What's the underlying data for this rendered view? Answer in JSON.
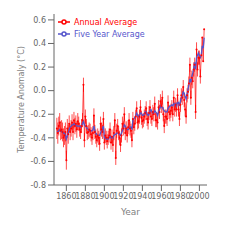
{
  "chart_data": {
    "type": "line",
    "title": "",
    "xlabel": "Year",
    "ylabel": "Temperature Anomaly (°C)",
    "xlim": [
      1847,
      2008
    ],
    "ylim": [
      -0.8,
      0.65
    ],
    "xticks": [
      1860,
      1880,
      1900,
      1920,
      1940,
      1960,
      1980,
      2000
    ],
    "yticks": [
      -0.8,
      -0.6,
      -0.4,
      -0.2,
      {
        "value": 0,
        "label": "0.0"
      },
      0.2,
      0.4,
      0.6
    ],
    "grid": false,
    "legend": "upper left",
    "x": [
      1850,
      1851,
      1852,
      1853,
      1854,
      1855,
      1856,
      1857,
      1858,
      1859,
      1860,
      1861,
      1862,
      1863,
      1864,
      1865,
      1866,
      1867,
      1868,
      1869,
      1870,
      1871,
      1872,
      1873,
      1874,
      1875,
      1876,
      1877,
      1878,
      1879,
      1880,
      1881,
      1882,
      1883,
      1884,
      1885,
      1886,
      1887,
      1888,
      1889,
      1890,
      1891,
      1892,
      1893,
      1894,
      1895,
      1896,
      1897,
      1898,
      1899,
      1900,
      1901,
      1902,
      1903,
      1904,
      1905,
      1906,
      1907,
      1908,
      1909,
      1910,
      1911,
      1912,
      1913,
      1914,
      1915,
      1916,
      1917,
      1918,
      1919,
      1920,
      1921,
      1922,
      1923,
      1924,
      1925,
      1926,
      1927,
      1928,
      1929,
      1930,
      1931,
      1932,
      1933,
      1934,
      1935,
      1936,
      1937,
      1938,
      1939,
      1940,
      1941,
      1942,
      1943,
      1944,
      1945,
      1946,
      1947,
      1948,
      1949,
      1950,
      1951,
      1952,
      1953,
      1954,
      1955,
      1956,
      1957,
      1958,
      1959,
      1960,
      1961,
      1962,
      1963,
      1964,
      1965,
      1966,
      1967,
      1968,
      1969,
      1970,
      1971,
      1972,
      1973,
      1974,
      1975,
      1976,
      1977,
      1978,
      1979,
      1980,
      1981,
      1982,
      1983,
      1984,
      1985,
      1986,
      1987,
      1988,
      1989,
      1990,
      1991,
      1992,
      1993,
      1994,
      1995,
      1996,
      1997,
      1998,
      1999,
      2000,
      2001,
      2002,
      2003,
      2004,
      2005
    ],
    "series": [
      {
        "name": "Annual Average",
        "color": "#FF0000",
        "marker": "o",
        "line_style": "solid",
        "values": [
          -0.32,
          -0.36,
          -0.3,
          -0.27,
          -0.34,
          -0.33,
          -0.35,
          -0.4,
          -0.38,
          -0.35,
          -0.59,
          -0.32,
          -0.37,
          -0.28,
          -0.35,
          -0.32,
          -0.27,
          -0.35,
          -0.25,
          -0.3,
          -0.28,
          -0.33,
          -0.26,
          -0.28,
          -0.33,
          -0.35,
          -0.3,
          -0.25,
          0.05,
          -0.42,
          -0.22,
          -0.3,
          -0.36,
          -0.35,
          -0.33,
          -0.34,
          -0.37,
          -0.4,
          -0.36,
          -0.21,
          -0.35,
          -0.39,
          -0.42,
          -0.38,
          -0.4,
          -0.45,
          -0.28,
          -0.33,
          -0.35,
          -0.24,
          -0.44,
          -0.38,
          -0.4,
          -0.43,
          -0.4,
          -0.38,
          -0.33,
          -0.44,
          -0.39,
          -0.46,
          -0.36,
          -0.25,
          -0.57,
          -0.34,
          -0.3,
          -0.36,
          -0.4,
          -0.46,
          -0.38,
          -0.28,
          -0.32,
          -0.2,
          -0.36,
          -0.32,
          -0.38,
          -0.31,
          -0.25,
          -0.32,
          -0.34,
          -0.42,
          -0.24,
          -0.31,
          -0.28,
          -0.22,
          -0.15,
          -0.27,
          -0.26,
          -0.22,
          -0.14,
          -0.23,
          -0.26,
          -0.25,
          -0.22,
          -0.19,
          -0.15,
          -0.24,
          -0.27,
          -0.19,
          -0.14,
          -0.22,
          -0.24,
          -0.18,
          -0.2,
          -0.11,
          -0.25,
          -0.25,
          -0.27,
          -0.14,
          -0.18,
          -0.09,
          -0.13,
          -0.06,
          -0.2,
          -0.3,
          -0.22,
          -0.22,
          -0.24,
          -0.1,
          -0.18,
          -0.2,
          -0.17,
          -0.14,
          -0.2,
          -0.06,
          -0.16,
          -0.12,
          -0.16,
          -0.04,
          -0.16,
          -0.24,
          -0.12,
          -0.04,
          -0.06,
          0.03,
          -0.08,
          -0.16,
          -0.22,
          -0.04,
          -0.01,
          0.06,
          0.22,
          -0.06,
          0.11,
          0.08,
          0.18,
          0.22,
          -0.18,
          0.35,
          0.18,
          0.28,
          0.28,
          0.12,
          0.3,
          0.45,
          0.25,
          0.52
        ],
        "error": [
          0.09,
          0.09,
          0.08,
          0.08,
          0.08,
          0.08,
          0.08,
          0.08,
          0.08,
          0.08,
          0.08,
          0.08,
          0.08,
          0.07,
          0.07,
          0.07,
          0.07,
          0.07,
          0.07,
          0.07,
          0.07,
          0.07,
          0.07,
          0.06,
          0.06,
          0.06,
          0.06,
          0.06,
          0.06,
          0.06,
          0.06,
          0.06,
          0.06,
          0.06,
          0.06,
          0.06,
          0.06,
          0.06,
          0.06,
          0.06,
          0.06,
          0.06,
          0.06,
          0.06,
          0.06,
          0.06,
          0.06,
          0.06,
          0.06,
          0.06,
          0.06,
          0.06,
          0.06,
          0.06,
          0.06,
          0.06,
          0.06,
          0.06,
          0.06,
          0.06,
          0.06,
          0.06,
          0.06,
          0.06,
          0.06,
          0.06,
          0.06,
          0.06,
          0.06,
          0.06,
          0.06,
          0.06,
          0.06,
          0.06,
          0.06,
          0.06,
          0.06,
          0.06,
          0.06,
          0.06,
          0.06,
          0.06,
          0.06,
          0.06,
          0.06,
          0.06,
          0.06,
          0.06,
          0.06,
          0.06,
          0.06,
          0.06,
          0.06,
          0.06,
          0.06,
          0.06,
          0.06,
          0.06,
          0.06,
          0.06,
          0.06,
          0.06,
          0.06,
          0.06,
          0.06,
          0.06,
          0.06,
          0.06,
          0.06,
          0.06,
          0.06,
          0.06,
          0.06,
          0.06,
          0.06,
          0.06,
          0.06,
          0.06,
          0.06,
          0.06,
          0.06,
          0.06,
          0.06,
          0.06,
          0.06,
          0.06,
          0.06,
          0.06,
          0.06,
          0.06,
          0.06,
          0.06,
          0.06,
          0.06,
          0.06,
          0.06,
          0.06,
          0.06,
          0.06,
          0.06,
          0.06,
          0.06,
          0.06,
          0.06,
          0.06,
          0.06,
          0.06,
          0.06,
          0.06,
          0.06,
          0.06,
          0.06
        ]
      },
      {
        "name": "Five Year Average",
        "color": "#5555CC",
        "line_style": "solid",
        "values": [
          -0.35,
          -0.35,
          -0.34,
          -0.33,
          -0.34,
          -0.35,
          -0.35,
          -0.36,
          -0.36,
          -0.38,
          -0.41,
          -0.38,
          -0.36,
          -0.33,
          -0.31,
          -0.3,
          -0.29,
          -0.29,
          -0.28,
          -0.29,
          -0.29,
          -0.3,
          -0.3,
          -0.3,
          -0.3,
          -0.31,
          -0.3,
          -0.28,
          -0.26,
          -0.29,
          -0.3,
          -0.31,
          -0.32,
          -0.33,
          -0.34,
          -0.34,
          -0.34,
          -0.34,
          -0.33,
          -0.3,
          -0.34,
          -0.36,
          -0.37,
          -0.38,
          -0.38,
          -0.38,
          -0.36,
          -0.34,
          -0.32,
          -0.3,
          -0.4,
          -0.4,
          -0.41,
          -0.41,
          -0.41,
          -0.4,
          -0.39,
          -0.4,
          -0.4,
          -0.4,
          -0.38,
          -0.37,
          -0.37,
          -0.36,
          -0.36,
          -0.36,
          -0.37,
          -0.38,
          -0.36,
          -0.34,
          -0.32,
          -0.29,
          -0.3,
          -0.32,
          -0.33,
          -0.33,
          -0.32,
          -0.31,
          -0.31,
          -0.33,
          -0.25,
          -0.24,
          -0.23,
          -0.21,
          -0.19,
          -0.21,
          -0.22,
          -0.21,
          -0.19,
          -0.19,
          -0.21,
          -0.21,
          -0.2,
          -0.18,
          -0.18,
          -0.2,
          -0.21,
          -0.2,
          -0.17,
          -0.16,
          -0.18,
          -0.19,
          -0.19,
          -0.17,
          -0.18,
          -0.19,
          -0.21,
          -0.18,
          -0.16,
          -0.13,
          -0.14,
          -0.14,
          -0.16,
          -0.17,
          -0.18,
          -0.18,
          -0.18,
          -0.15,
          -0.14,
          -0.13,
          -0.13,
          -0.12,
          -0.13,
          -0.11,
          -0.12,
          -0.11,
          -0.13,
          -0.1,
          -0.1,
          -0.13,
          -0.09,
          -0.06,
          -0.04,
          -0.01,
          -0.02,
          -0.05,
          -0.07,
          -0.03,
          0.01,
          0.05,
          0.1,
          0.07,
          0.12,
          0.15,
          0.19,
          0.24,
          0.18,
          0.28,
          0.3,
          0.32,
          0.3,
          0.28,
          0.3,
          0.38,
          0.36,
          0.45
        ]
      }
    ]
  }
}
